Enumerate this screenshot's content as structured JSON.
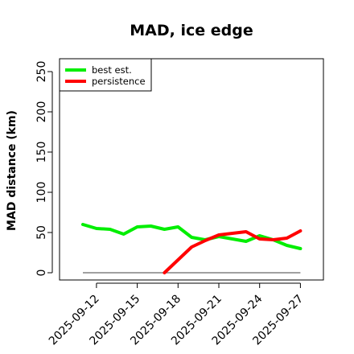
{
  "chart_data": {
    "type": "line",
    "title": "MAD, ice edge",
    "xlabel": "",
    "ylabel": "MAD distance (km)",
    "x": [
      "2025-09-11",
      "2025-09-12",
      "2025-09-13",
      "2025-09-14",
      "2025-09-15",
      "2025-09-16",
      "2025-09-17",
      "2025-09-18",
      "2025-09-19",
      "2025-09-20",
      "2025-09-21",
      "2025-09-22",
      "2025-09-23",
      "2025-09-24",
      "2025-09-25",
      "2025-09-26",
      "2025-09-27"
    ],
    "x_ticks": [
      "2025-09-12",
      "2025-09-15",
      "2025-09-18",
      "2025-09-21",
      "2025-09-24",
      "2025-09-27"
    ],
    "y_ticks": [
      0,
      50,
      100,
      150,
      200,
      250
    ],
    "ylim": [
      -6,
      262
    ],
    "grid": false,
    "legend_position": "top-left",
    "series": [
      {
        "name": "best est.",
        "color": "#00ee00",
        "values": [
          60,
          55,
          54,
          48,
          57,
          58,
          54,
          57,
          44,
          41,
          45,
          42,
          39,
          46,
          41,
          34,
          30
        ]
      },
      {
        "name": "persistence",
        "color": "#ff0000",
        "values": [
          null,
          null,
          null,
          null,
          null,
          null,
          0,
          16,
          32,
          40,
          47,
          49,
          51,
          42,
          41,
          43,
          52
        ]
      }
    ],
    "reference_line": {
      "y": 0,
      "color": "#808080"
    }
  }
}
